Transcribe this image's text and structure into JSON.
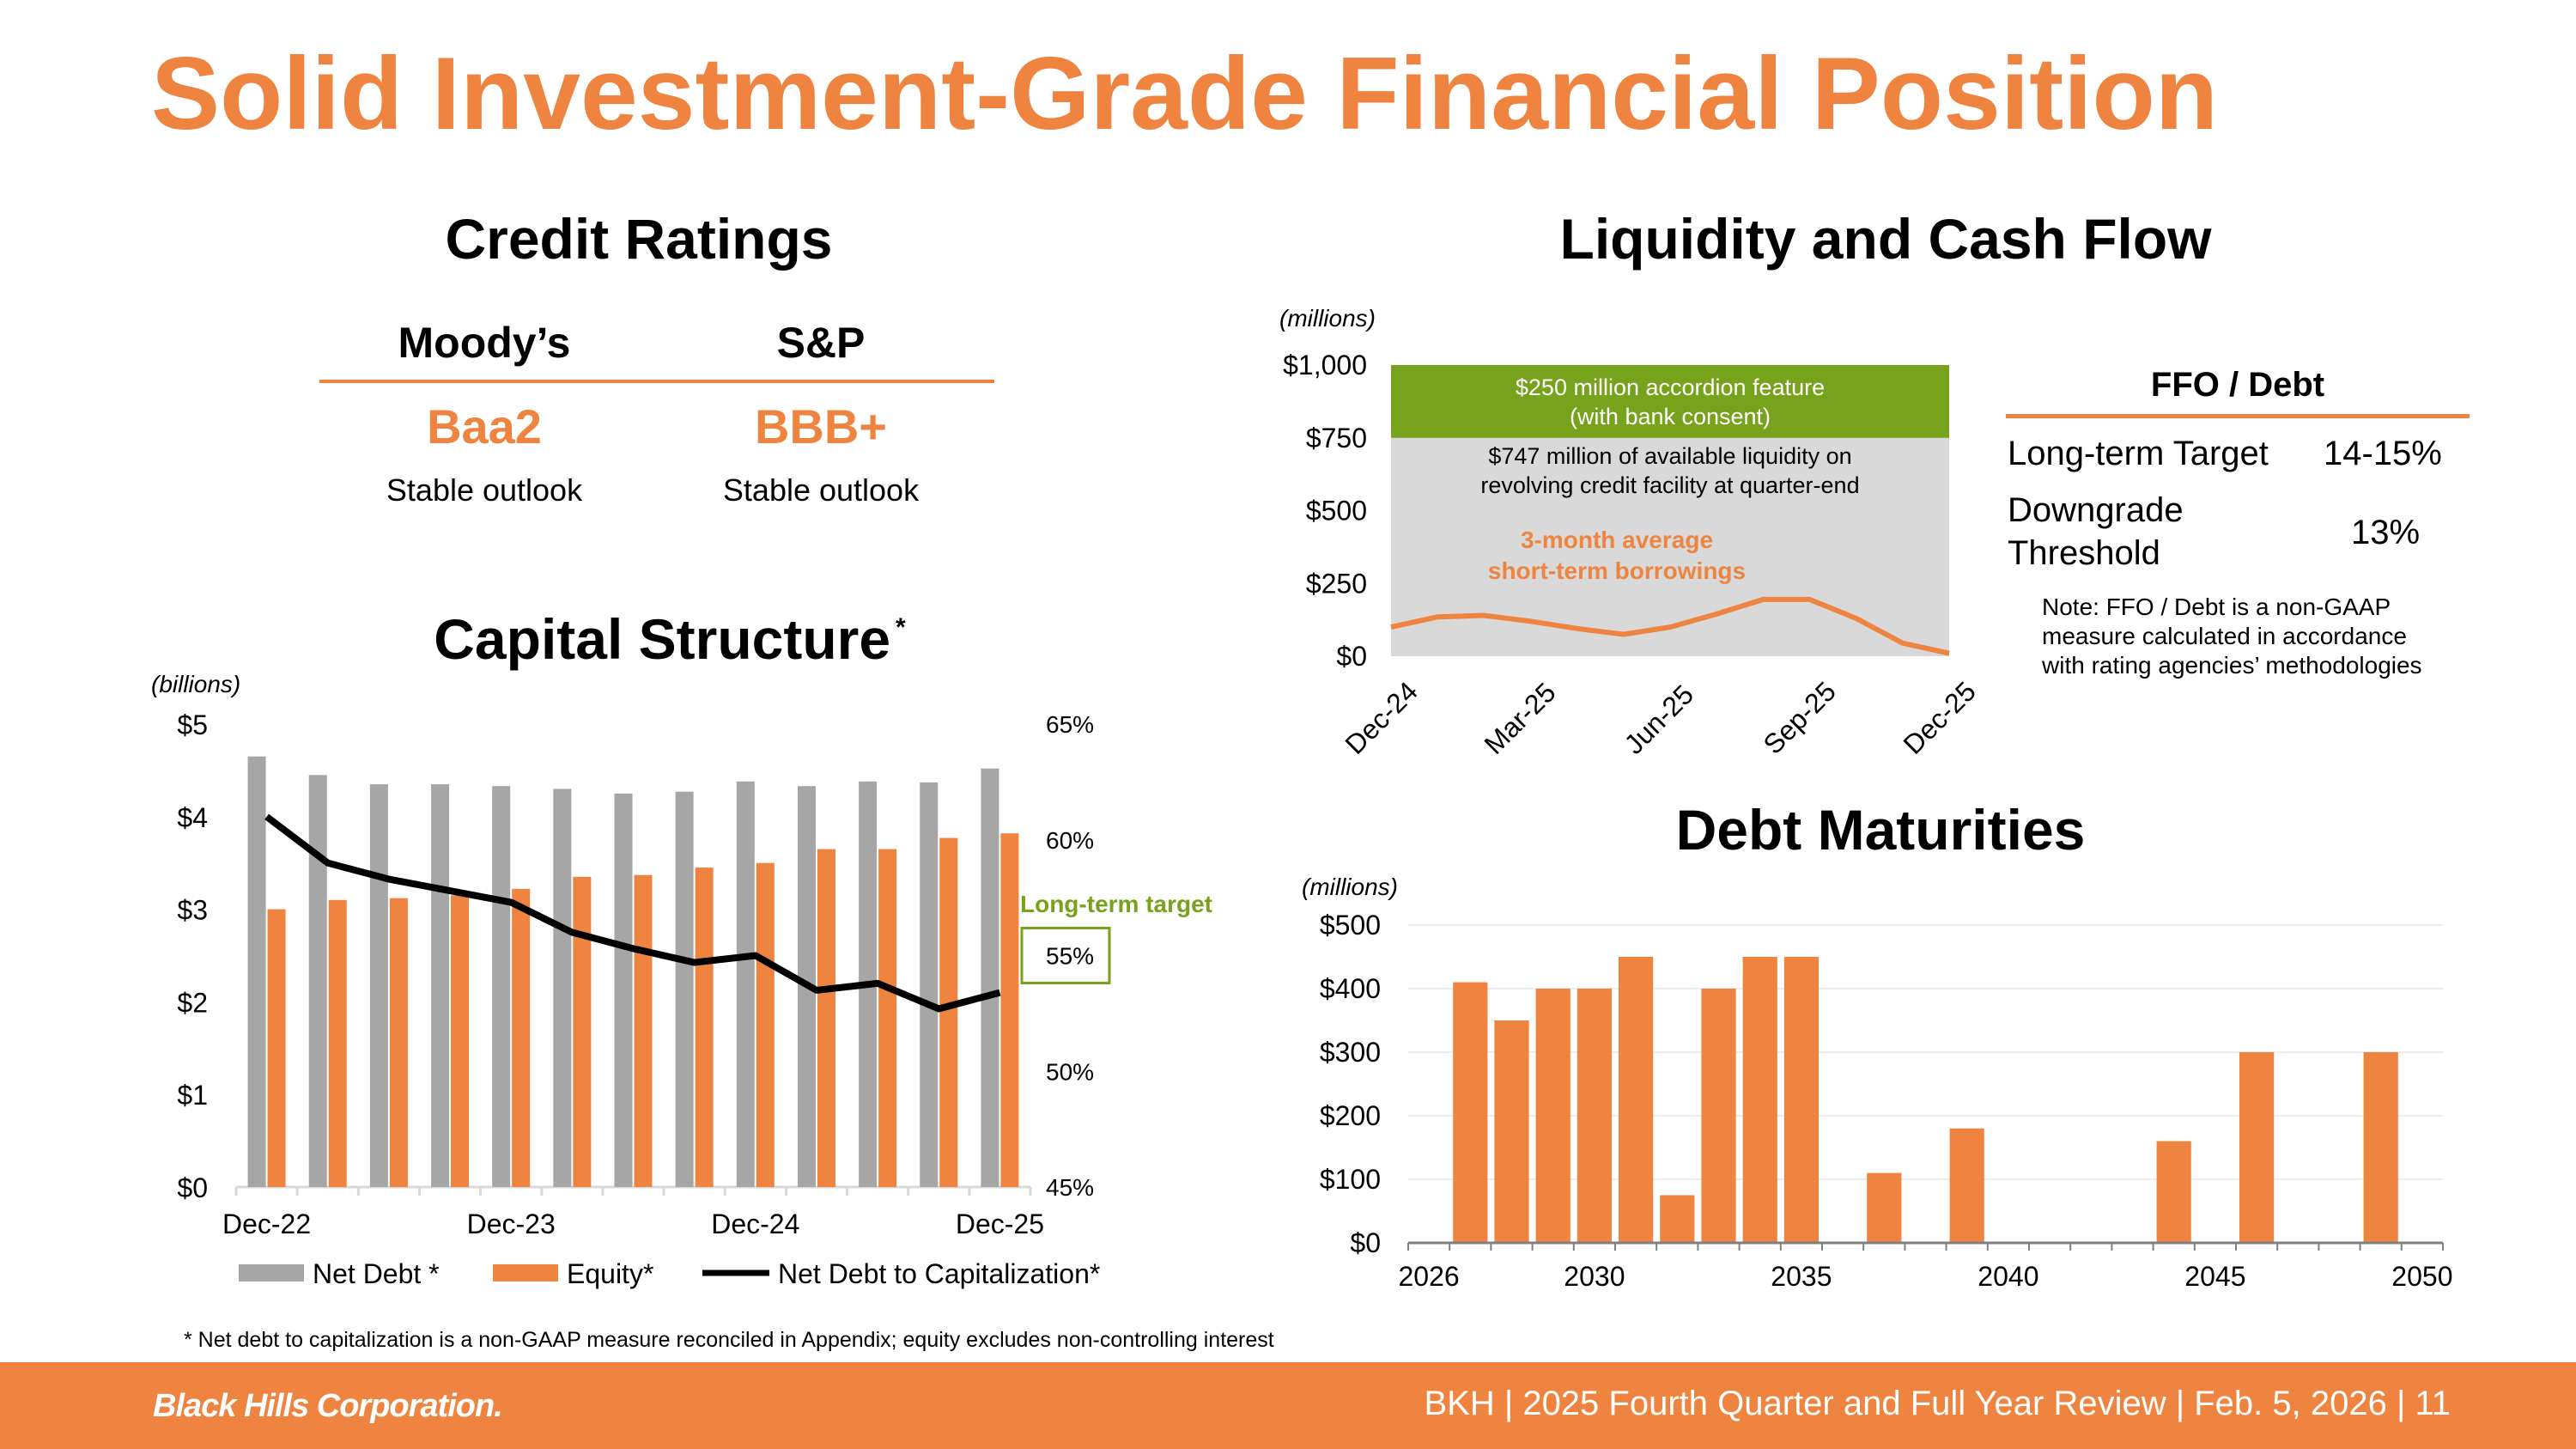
{
  "title": "Solid Investment-Grade Financial Position",
  "credit_ratings": {
    "heading": "Credit Ratings",
    "agencies": [
      {
        "name": "Moody’s",
        "rating": "Baa2",
        "outlook": "Stable outlook"
      },
      {
        "name": "S&P",
        "rating": "BBB+",
        "outlook": "Stable outlook"
      }
    ]
  },
  "liquidity": {
    "heading": "Liquidity and Cash Flow",
    "unit_label": "(millions)",
    "accordion_text_1": "$250 million accordion feature",
    "accordion_text_2": "(with bank consent)",
    "available_text_1": "$747 million of available liquidity on",
    "available_text_2": "revolving credit facility at quarter-end",
    "avg_label_1": "3-month average",
    "avg_label_2": "short-term borrowings"
  },
  "ffo_debt": {
    "heading": "FFO / Debt",
    "rows": [
      {
        "label": "Long-term Target",
        "value": "14-15%"
      },
      {
        "label_1": "Downgrade",
        "label_2": "Threshold",
        "value": "13%"
      }
    ],
    "note_1": "Note: FFO / Debt is a non-GAAP",
    "note_2": "measure calculated in accordance",
    "note_3": "with rating agencies’ methodologies"
  },
  "capital_structure": {
    "heading": "Capital Structure",
    "heading_mark": "*",
    "unit_label": "(billions)",
    "long_term_target_label": "Long-term target"
  },
  "debt_maturities": {
    "heading": "Debt Maturities",
    "unit_label": "(millions)"
  },
  "footnote": "* Net debt to capitalization is a non-GAAP measure reconciled in Appendix; equity excludes non-controlling interest",
  "footer": {
    "logo_text": "Black Hills Corporation.",
    "text": "BKH  |  2025 Fourth Quarter and Full Year Review  |  Feb. 5, 2026  |  11"
  },
  "colors": {
    "orange": "#EE8440",
    "gray": "#A6A6A6",
    "green": "#77A21B",
    "shade": "#D9D9D9"
  },
  "chart_data": [
    {
      "id": "capital_structure",
      "type": "bar",
      "categories": [
        "Dec-22",
        "Mar-23",
        "Jun-23",
        "Sep-23",
        "Dec-23",
        "Mar-24",
        "Jun-24",
        "Sep-24",
        "Dec-24",
        "Mar-25",
        "Jun-25",
        "Sep-25",
        "Dec-25"
      ],
      "tick_labels": [
        "Dec-22",
        "Dec-23",
        "Dec-24",
        "Dec-25"
      ],
      "series": [
        {
          "name": "Net Debt *",
          "axis": "left",
          "values": [
            4.65,
            4.45,
            4.35,
            4.35,
            4.33,
            4.3,
            4.25,
            4.27,
            4.38,
            4.33,
            4.38,
            4.37,
            4.52
          ]
        },
        {
          "name": "Equity*",
          "axis": "left",
          "values": [
            3.0,
            3.1,
            3.12,
            3.15,
            3.22,
            3.35,
            3.37,
            3.45,
            3.5,
            3.65,
            3.65,
            3.77,
            3.82
          ]
        },
        {
          "name": "Net Debt to Capitalization*",
          "type": "line",
          "axis": "right",
          "values": [
            61.0,
            59.0,
            58.3,
            57.8,
            57.3,
            56.0,
            55.3,
            54.7,
            55.0,
            53.5,
            53.8,
            52.7,
            53.4
          ]
        }
      ],
      "ylim_left": [
        0,
        5
      ],
      "yticks_left": [
        "$0",
        "$1",
        "$2",
        "$3",
        "$4",
        "$5"
      ],
      "ylim_right": [
        45,
        65
      ],
      "yticks_right": [
        "45%",
        "50%",
        "55%",
        "60%",
        "65%"
      ],
      "target_value": 55,
      "legend": "bottom"
    },
    {
      "id": "liquidity",
      "type": "area",
      "x_labels": [
        "Dec-24",
        "Mar-25",
        "Jun-25",
        "Sep-25",
        "Dec-25"
      ],
      "ylim": [
        0,
        1000
      ],
      "yticks": [
        "$0",
        "$250",
        "$500",
        "$750",
        "$1,000"
      ],
      "facility_total": 1000,
      "accordion_band": [
        750,
        1000
      ],
      "series": [
        {
          "name": "3-month average short-term borrowings",
          "values": [
            100,
            135,
            140,
            120,
            95,
            75,
            100,
            145,
            195,
            195,
            130,
            45,
            10
          ]
        }
      ]
    },
    {
      "id": "debt_maturities",
      "type": "bar",
      "x": [
        2027,
        2028,
        2029,
        2030,
        2031,
        2032,
        2033,
        2034,
        2035,
        2037,
        2039,
        2044,
        2046,
        2049
      ],
      "values": [
        410,
        350,
        400,
        400,
        450,
        75,
        400,
        450,
        450,
        110,
        180,
        160,
        300,
        300
      ],
      "xticks": [
        "2026",
        "2030",
        "2035",
        "2040",
        "2045",
        "2050"
      ],
      "xlim": [
        2026,
        2050
      ],
      "ylim": [
        0,
        500
      ],
      "yticks": [
        "$0",
        "$100",
        "$200",
        "$300",
        "$400",
        "$500"
      ]
    }
  ]
}
